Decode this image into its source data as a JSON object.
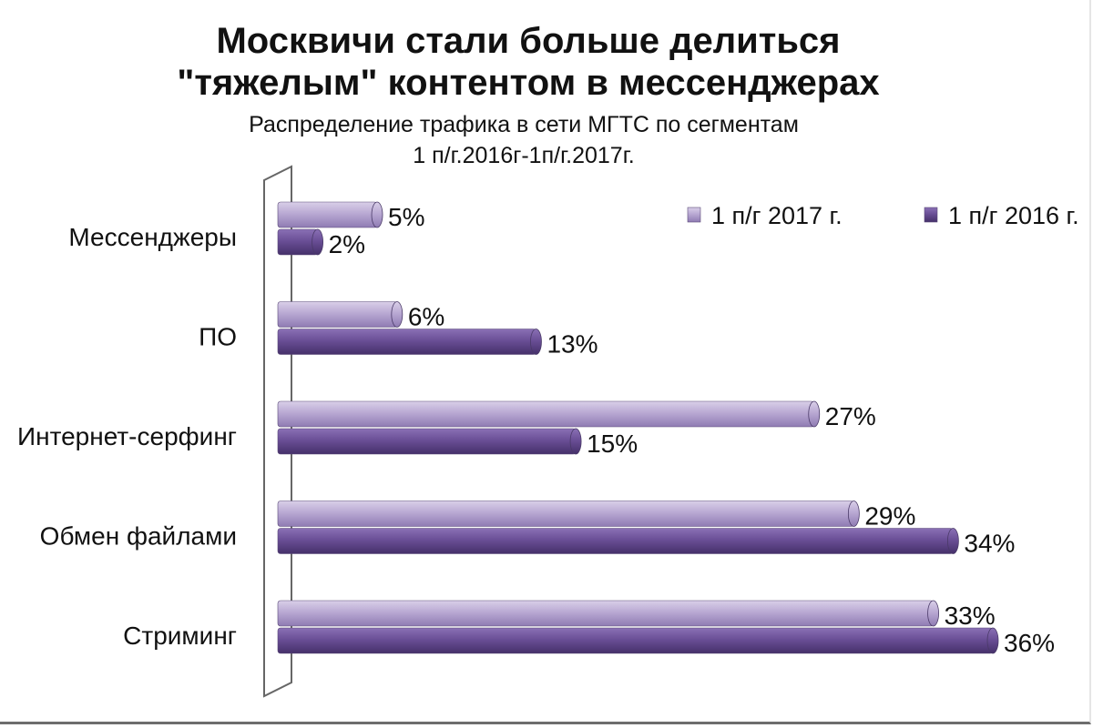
{
  "chart_data": {
    "type": "bar",
    "orientation": "horizontal",
    "title_line1": "Москвичи стали больше делиться",
    "title_line2": "\"тяжелым\" контентом в мессенджерах",
    "subtitle_line1": "Распределение трафика в сети МГТС по сегментам",
    "subtitle_line2": "1 п/г.2016г-1п/г.2017г.",
    "categories": [
      "Мессенджеры",
      "ПО",
      "Интернет-серфинг",
      "Обмен файлами",
      "Стриминг"
    ],
    "series": [
      {
        "name": "1 п/г 2017 г.",
        "values": [
          5,
          6,
          27,
          29,
          33
        ],
        "labels": [
          "5%",
          "6%",
          "27%",
          "29%",
          "33%"
        ],
        "color": "#b3a2cf"
      },
      {
        "name": "1 п/г 2016 г.",
        "values": [
          2,
          13,
          15,
          34,
          36
        ],
        "labels": [
          "2%",
          "13%",
          "15%",
          "34%",
          "36%"
        ],
        "color": "#6a4f96"
      }
    ],
    "xlim": [
      0,
      36
    ],
    "grid": false,
    "legend_position": "top-right"
  }
}
